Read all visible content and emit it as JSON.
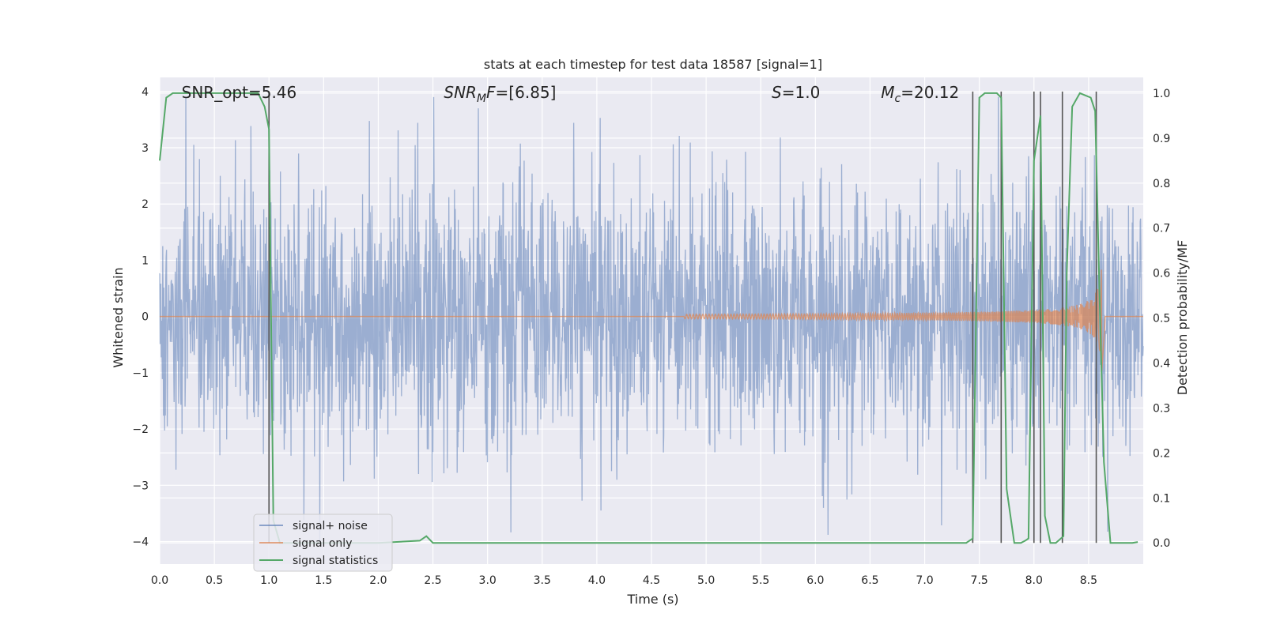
{
  "chart_data": {
    "type": "line",
    "title": "stats at each timestep for test data 18587 [signal=1]",
    "xlabel": "Time (s)",
    "ylabel": "Whitened strain",
    "y2label": "Detection probability/MF",
    "xlim": [
      0.0,
      9.0
    ],
    "ylim": [
      -4.4,
      4.25
    ],
    "y2lim": [
      -0.047,
      1.035
    ],
    "grid": true,
    "legend_position": "lower-left",
    "x_ticks": [
      "0.0",
      "0.5",
      "1.0",
      "1.5",
      "2.0",
      "2.5",
      "3.0",
      "3.5",
      "4.0",
      "4.5",
      "5.0",
      "5.5",
      "6.0",
      "6.5",
      "7.0",
      "7.5",
      "8.0",
      "8.5"
    ],
    "y_ticks": [
      "4",
      "3",
      "2",
      "1",
      "0",
      "−1",
      "−2",
      "−3",
      "−4"
    ],
    "y2_ticks": [
      "1.0",
      "0.9",
      "0.8",
      "0.7",
      "0.6",
      "0.5",
      "0.4",
      "0.3",
      "0.2",
      "0.1",
      "0.0"
    ],
    "annotations": [
      {
        "text": "SNR_opt=5.46",
        "x": 0.2
      },
      {
        "text": "SNR_MF=[6.85]",
        "x": 2.6
      },
      {
        "text": "S=1.0",
        "x": 5.6
      },
      {
        "text": "M_c=20.12",
        "x": 6.6
      }
    ],
    "series": [
      {
        "name": "signal+ noise",
        "color": "#4c72b0",
        "style": "dense noise, range about -4.0 to 3.9, amplitude ~1.3 typical"
      },
      {
        "name": "signal only",
        "color": "#dd8452",
        "chirp_start": 4.8,
        "chirp_peak_time": 8.62,
        "chirp_peak_amplitude": 1.1
      },
      {
        "name": "signal statistics",
        "color": "#55a868",
        "axis": "right",
        "x": [
          0.0,
          0.06,
          0.12,
          0.5,
          0.9,
          0.96,
          1.0,
          1.04,
          1.1,
          1.3,
          2.0,
          2.38,
          2.44,
          2.5,
          3.0,
          5.0,
          7.0,
          7.38,
          7.44,
          7.5,
          7.55,
          7.66,
          7.7,
          7.75,
          7.82,
          7.88,
          7.92,
          7.95,
          8.0,
          8.06,
          8.1,
          8.15,
          8.2,
          8.27,
          8.3,
          8.35,
          8.42,
          8.52,
          8.56,
          8.6,
          8.64,
          8.7,
          8.9,
          8.95
        ],
        "y": [
          0.85,
          0.99,
          1.0,
          1.0,
          1.0,
          0.97,
          0.92,
          0.05,
          0.0,
          0.0,
          0.0,
          0.005,
          0.015,
          0.0,
          0.0,
          0.0,
          0.0,
          0.0,
          0.01,
          0.99,
          1.0,
          1.0,
          0.99,
          0.12,
          0.0,
          0.0,
          0.005,
          0.01,
          0.85,
          0.95,
          0.06,
          0.0,
          0.0,
          0.015,
          0.6,
          0.97,
          1.0,
          0.99,
          0.96,
          0.55,
          0.18,
          0.0,
          0.0,
          0.002
        ]
      }
    ],
    "vertical_lines": {
      "color": "#555555",
      "x": [
        1.0,
        7.44,
        7.7,
        8.0,
        8.06,
        8.26,
        8.57
      ]
    }
  }
}
